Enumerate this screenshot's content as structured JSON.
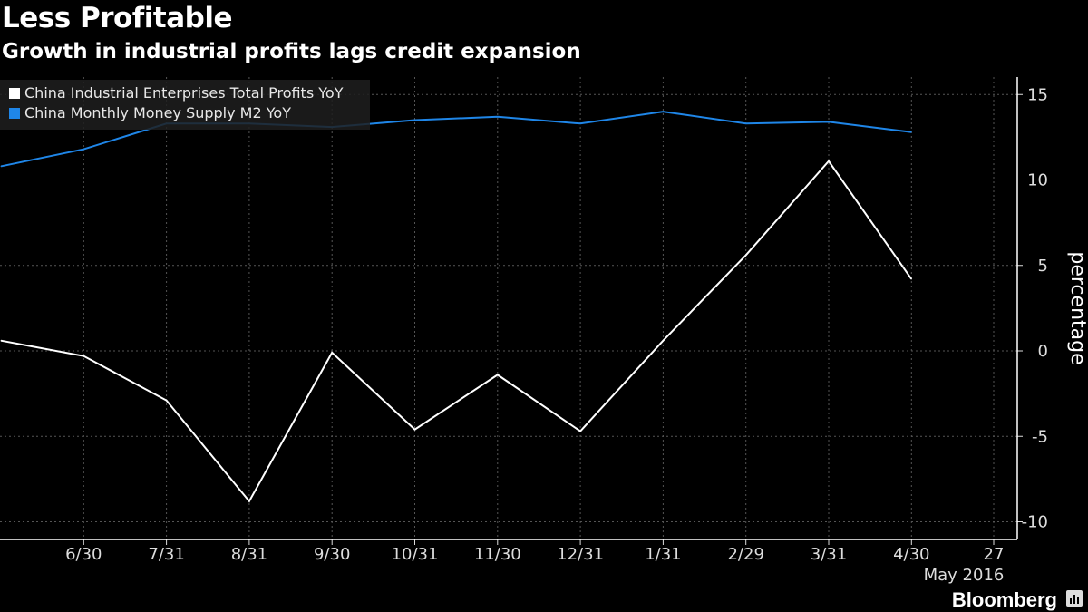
{
  "chart_data": {
    "type": "line",
    "title": "Less Profitable",
    "subtitle": "Growth in industrial profits lags credit expansion",
    "ylabel": "percentage",
    "xlabel": "May 2016",
    "ylim": [
      -11,
      16
    ],
    "yticks": [
      15,
      10,
      5,
      0,
      -5,
      -10
    ],
    "xticks": [
      "6/30",
      "7/31",
      "8/31",
      "9/30",
      "10/31",
      "11/30",
      "12/31",
      "1/31",
      "2/29",
      "3/31",
      "4/30",
      "27"
    ],
    "x": [
      "5/31",
      "6/30",
      "7/31",
      "8/31",
      "9/30",
      "10/31",
      "11/30",
      "12/31",
      "1/31",
      "2/29",
      "3/31",
      "4/30"
    ],
    "grid": true,
    "legend_position": "top-left",
    "series": [
      {
        "name": "China Industrial Enterprises Total Profits YoY",
        "color": "#ffffff",
        "values": [
          0.6,
          -0.3,
          -2.9,
          -8.8,
          -0.1,
          -4.6,
          -1.4,
          -4.7,
          0.6,
          5.6,
          11.1,
          4.2
        ]
      },
      {
        "name": "China Monthly Money Supply M2 YoY",
        "color": "#1f86e8",
        "values": [
          10.8,
          11.8,
          13.3,
          13.3,
          13.1,
          13.5,
          13.7,
          13.3,
          14.0,
          13.3,
          13.4,
          12.8
        ]
      }
    ]
  },
  "brand": "Bloomberg"
}
